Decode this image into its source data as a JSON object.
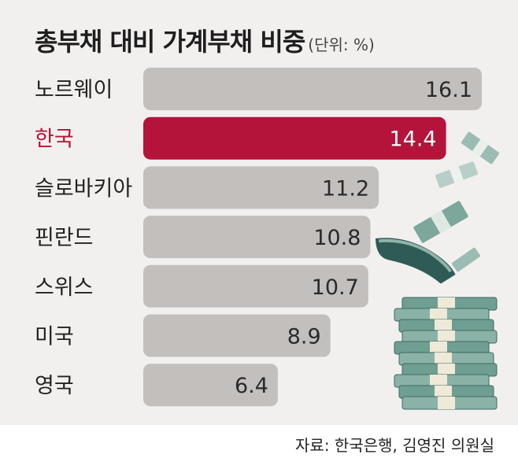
{
  "header": {
    "title": "총부채 대비 가계부채 비중",
    "unit": "(단위: %)"
  },
  "source": "자료: 한국은행, 김영진 의원실",
  "colors": {
    "bar": "#c2bfbd",
    "highlight": "#b5143a",
    "highlight_text": "#b41434",
    "panel": "#f2f0ef",
    "money": "#6f9e93"
  },
  "chart_data": {
    "type": "bar",
    "orientation": "horizontal",
    "categories": [
      "노르웨이",
      "한국",
      "슬로바키아",
      "핀란드",
      "스위스",
      "미국",
      "영국"
    ],
    "values": [
      16.1,
      14.4,
      11.2,
      10.8,
      10.7,
      8.9,
      6.4
    ],
    "value_labels": [
      "16.1",
      "14.4",
      "11.2",
      "10.8",
      "10.7",
      "8.9",
      "6.4"
    ],
    "highlight": "한국",
    "title": "총부채 대비 가계부채 비중",
    "unit": "(단위: %)",
    "xlim": [
      0,
      16.1
    ],
    "grid": false,
    "legend": "none"
  }
}
